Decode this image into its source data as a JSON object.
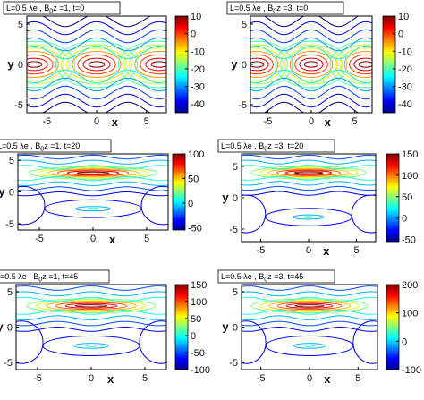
{
  "chart_data": [
    {
      "type": "contour",
      "title": "L=0.5 λe , B0z =1, t=0",
      "title_parts": {
        "prefix": "L=0.5 λe , B",
        "sub": "0",
        "suffix": "z =1, t=0"
      },
      "xlabel": "x",
      "ylabel": "y",
      "xlim": [
        -7,
        7
      ],
      "ylim": [
        -6,
        6
      ],
      "xticks": [
        "-5",
        "0",
        "5"
      ],
      "yticks": [
        "5",
        "0",
        "-5"
      ],
      "colorbar": {
        "min": -45,
        "max": 10,
        "ticks": [
          "10",
          "0",
          "-10",
          "-20",
          "-30",
          "-40"
        ]
      },
      "field": {
        "kind": "island",
        "ymid": 0,
        "width": 3.6,
        "levels": 12,
        "core": "red"
      }
    },
    {
      "type": "contour",
      "title": "L=0.5 λe , B0z =3, t=0",
      "title_parts": {
        "prefix": "L=0.5 λe , B",
        "sub": "0",
        "suffix": "z =3, t=0"
      },
      "xlabel": "x",
      "ylabel": "y",
      "xlim": [
        -7,
        7
      ],
      "ylim": [
        -6,
        6
      ],
      "xticks": [
        "-5",
        "0",
        "5"
      ],
      "yticks": [
        "5",
        "0",
        "-5"
      ],
      "colorbar": {
        "min": -45,
        "max": 10,
        "ticks": [
          "10",
          "0",
          "-10",
          "-20",
          "-30",
          "-40"
        ]
      },
      "field": {
        "kind": "island",
        "ymid": 0,
        "width": 3.6,
        "levels": 12,
        "core": "red"
      }
    },
    {
      "type": "contour",
      "title": "L=0.5 λe , B0z =1, t=20",
      "title_parts": {
        "prefix": "L=0.5 λe , B",
        "sub": "0",
        "suffix": "z =1, t=20"
      },
      "xlabel": "x",
      "ylabel": "y",
      "xlim": [
        -7,
        7
      ],
      "ylim": [
        -6,
        6
      ],
      "xticks": [
        "-5",
        "0",
        "5"
      ],
      "yticks": [
        "5",
        "0",
        "-5"
      ],
      "colorbar": {
        "min": -55,
        "max": 100,
        "ticks": [
          "100",
          "50",
          "0",
          "-50"
        ]
      },
      "field": {
        "kind": "layered",
        "ymid": 3,
        "width": 2.2,
        "levels": 10,
        "core": "red"
      }
    },
    {
      "type": "contour",
      "title": "L=0.5 λe , B0z =3, t=20",
      "title_parts": {
        "prefix": "L=0.5 λe , B",
        "sub": "0",
        "suffix": "z =3, t=20"
      },
      "xlabel": "x",
      "ylabel": "y",
      "xlim": [
        -7,
        7
      ],
      "ylim": [
        -7,
        7
      ],
      "xticks": [
        "-5",
        "0",
        "5"
      ],
      "yticks": [
        "5",
        "0",
        "-5"
      ],
      "colorbar": {
        "min": -55,
        "max": 150,
        "ticks": [
          "150",
          "100",
          "50",
          "0",
          "-50"
        ]
      },
      "field": {
        "kind": "layered",
        "ymid": 4,
        "width": 2.0,
        "levels": 10,
        "core": "red"
      }
    },
    {
      "type": "contour",
      "title": "L=0.5 λe , B0z =1, t=45",
      "title_parts": {
        "prefix": "L=0.5 λe , B",
        "sub": "0",
        "suffix": "z =1, t=45"
      },
      "xlabel": "x",
      "ylabel": "y",
      "xlim": [
        -7,
        7
      ],
      "ylim": [
        -6,
        6
      ],
      "xticks": [
        "-5",
        "0",
        "5"
      ],
      "yticks": [
        "5",
        "0",
        "-5"
      ],
      "colorbar": {
        "min": -100,
        "max": 150,
        "ticks": [
          "150",
          "100",
          "50",
          "0",
          "-50",
          "-100"
        ]
      },
      "field": {
        "kind": "layered",
        "ymid": 3,
        "width": 2.2,
        "levels": 10,
        "core": "red"
      }
    },
    {
      "type": "contour",
      "title": "L=0.5 λe , B0z =3, t=45",
      "title_parts": {
        "prefix": "L=0.5 λe , B",
        "sub": "0",
        "suffix": "z =3, t=45"
      },
      "xlabel": "x",
      "ylabel": "y",
      "xlim": [
        -7,
        7
      ],
      "ylim": [
        -6,
        6
      ],
      "xticks": [
        "-5",
        "0",
        "5"
      ],
      "yticks": [
        "5",
        "0",
        "-5"
      ],
      "colorbar": {
        "min": -100,
        "max": 200,
        "ticks": [
          "200",
          "100",
          "0",
          "-100"
        ]
      },
      "field": {
        "kind": "layered",
        "ymid": 3,
        "width": 2.0,
        "levels": 10,
        "core": "red"
      }
    }
  ]
}
